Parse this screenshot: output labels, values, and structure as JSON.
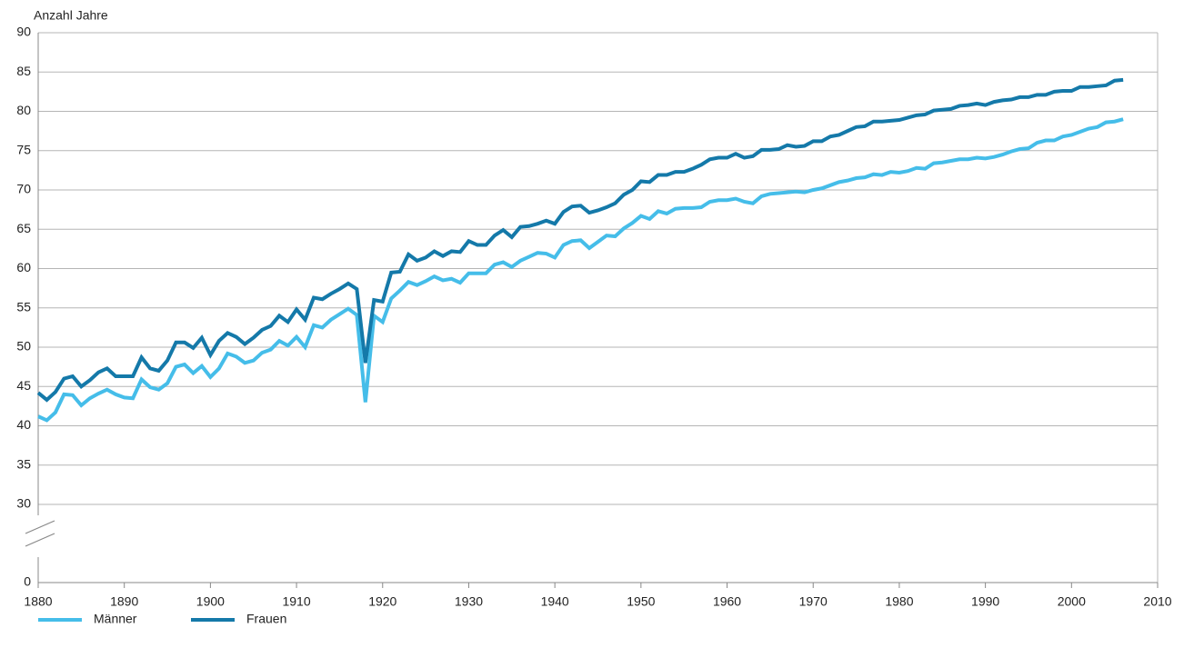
{
  "chart_data": {
    "type": "line",
    "ylabel": "Anzahl Jahre",
    "x": [
      1880,
      1881,
      1882,
      1883,
      1884,
      1885,
      1886,
      1887,
      1888,
      1889,
      1890,
      1891,
      1892,
      1893,
      1894,
      1895,
      1896,
      1897,
      1898,
      1899,
      1900,
      1901,
      1902,
      1903,
      1904,
      1905,
      1906,
      1907,
      1908,
      1909,
      1910,
      1911,
      1912,
      1913,
      1914,
      1915,
      1916,
      1917,
      1918,
      1919,
      1920,
      1921,
      1922,
      1923,
      1924,
      1925,
      1926,
      1927,
      1928,
      1929,
      1930,
      1931,
      1932,
      1933,
      1934,
      1935,
      1936,
      1937,
      1938,
      1939,
      1940,
      1941,
      1942,
      1943,
      1944,
      1945,
      1946,
      1947,
      1948,
      1949,
      1950,
      1951,
      1952,
      1953,
      1954,
      1955,
      1956,
      1957,
      1958,
      1959,
      1960,
      1961,
      1962,
      1963,
      1964,
      1965,
      1966,
      1967,
      1968,
      1969,
      1970,
      1971,
      1972,
      1973,
      1974,
      1975,
      1976,
      1977,
      1978,
      1979,
      1980,
      1981,
      1982,
      1983,
      1984,
      1985,
      1986,
      1987,
      1988,
      1989,
      1990,
      1991,
      1992,
      1993,
      1994,
      1995,
      1996,
      1997,
      1998,
      1999,
      2000,
      2001,
      2002,
      2003,
      2004,
      2005,
      2006
    ],
    "series": [
      {
        "name": "Männer",
        "color": "#45bde9",
        "values": [
          41.2,
          40.7,
          41.7,
          44.0,
          43.9,
          42.6,
          43.5,
          44.1,
          44.6,
          44.0,
          43.6,
          43.5,
          45.9,
          44.9,
          44.6,
          45.4,
          47.5,
          47.8,
          46.7,
          47.6,
          46.2,
          47.3,
          49.2,
          48.8,
          48.0,
          48.3,
          49.3,
          49.7,
          50.8,
          50.2,
          51.3,
          50.0,
          52.8,
          52.5,
          53.5,
          54.2,
          54.9,
          54.1,
          43.0,
          54.0,
          53.2,
          56.2,
          57.2,
          58.3,
          57.9,
          58.4,
          59.0,
          58.5,
          58.7,
          58.2,
          59.4,
          59.4,
          59.4,
          60.5,
          60.8,
          60.2,
          61.0,
          61.5,
          62.0,
          61.9,
          61.4,
          63.0,
          63.5,
          63.6,
          62.6,
          63.4,
          64.2,
          64.1,
          65.1,
          65.8,
          66.7,
          66.3,
          67.3,
          67.0,
          67.6,
          67.7,
          67.7,
          67.8,
          68.5,
          68.7,
          68.7,
          68.9,
          68.5,
          68.3,
          69.2,
          69.5,
          69.6,
          69.7,
          69.8,
          69.7,
          70.0,
          70.2,
          70.6,
          71.0,
          71.2,
          71.5,
          71.6,
          72.0,
          71.9,
          72.3,
          72.2,
          72.4,
          72.8,
          72.7,
          73.4,
          73.5,
          73.7,
          73.9,
          73.9,
          74.1,
          74.0,
          74.2,
          74.5,
          74.9,
          75.2,
          75.3,
          76.0,
          76.3,
          76.3,
          76.8,
          77.0,
          77.4,
          77.8,
          78.0,
          78.6,
          78.7,
          79.0
        ]
      },
      {
        "name": "Frauen",
        "color": "#1479a9",
        "values": [
          44.2,
          43.3,
          44.3,
          46.0,
          46.3,
          45.0,
          45.8,
          46.8,
          47.3,
          46.3,
          46.3,
          46.3,
          48.7,
          47.3,
          47.0,
          48.3,
          50.6,
          50.6,
          49.9,
          51.2,
          49.0,
          50.8,
          51.8,
          51.3,
          50.4,
          51.2,
          52.2,
          52.7,
          54.0,
          53.2,
          54.8,
          53.5,
          56.3,
          56.1,
          56.8,
          57.4,
          58.1,
          57.4,
          48.0,
          56.0,
          55.8,
          59.5,
          59.6,
          61.8,
          61.0,
          61.4,
          62.2,
          61.6,
          62.2,
          62.1,
          63.5,
          63.0,
          63.0,
          64.2,
          64.9,
          64.0,
          65.3,
          65.4,
          65.7,
          66.1,
          65.7,
          67.2,
          67.9,
          68.0,
          67.1,
          67.4,
          67.8,
          68.3,
          69.4,
          70.0,
          71.1,
          71.0,
          71.9,
          71.9,
          72.3,
          72.3,
          72.7,
          73.2,
          73.9,
          74.1,
          74.1,
          74.6,
          74.1,
          74.3,
          75.1,
          75.1,
          75.2,
          75.7,
          75.5,
          75.6,
          76.2,
          76.2,
          76.8,
          77.0,
          77.5,
          78.0,
          78.1,
          78.7,
          78.7,
          78.8,
          78.9,
          79.2,
          79.5,
          79.6,
          80.1,
          80.2,
          80.3,
          80.7,
          80.8,
          81.0,
          80.8,
          81.2,
          81.4,
          81.5,
          81.8,
          81.8,
          82.1,
          82.1,
          82.5,
          82.6,
          82.6,
          83.1,
          83.1,
          83.2,
          83.3,
          83.9,
          84.0
        ]
      }
    ],
    "xlim": [
      1880,
      2010
    ],
    "xticks": [
      1880,
      1890,
      1900,
      1910,
      1920,
      1930,
      1940,
      1950,
      1960,
      1970,
      1980,
      1990,
      2000,
      2010
    ],
    "ylim": [
      0,
      90
    ],
    "yticks": [
      0,
      30,
      35,
      40,
      45,
      50,
      55,
      60,
      65,
      70,
      75,
      80,
      85,
      90
    ],
    "y_break": [
      0,
      30
    ],
    "grid": true,
    "legend": "bottom-left"
  }
}
